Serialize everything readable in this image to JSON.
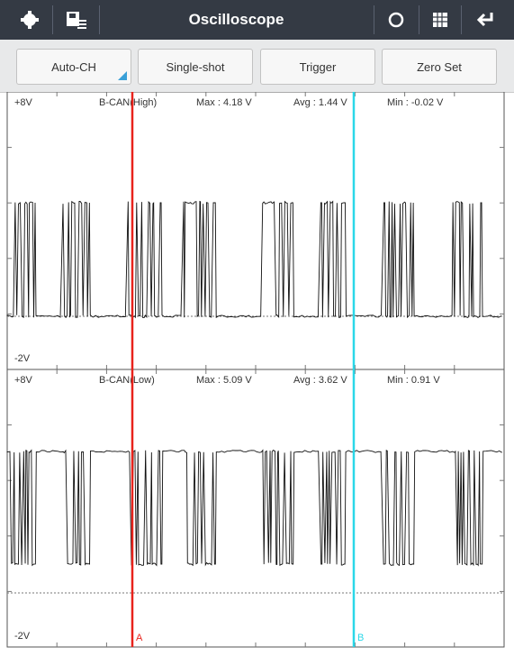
{
  "header": {
    "title": "Oscilloscope"
  },
  "toolbar": {
    "buttons": [
      "Auto-CH",
      "Single-shot",
      "Trigger",
      "Zero Set"
    ]
  },
  "channels": [
    {
      "top_label": "+8V",
      "name": "B-CAN(High)",
      "max": "Max : 4.18 V",
      "avg": "Avg : 1.44 V",
      "min": "Min : -0.02 V",
      "bottom_label": "-2V"
    },
    {
      "top_label": "+8V",
      "name": "B-CAN(Low)",
      "max": "Max : 5.09 V",
      "avg": "Avg : 3.62 V",
      "min": "Min : 0.91 V",
      "bottom_label": "-2V"
    }
  ],
  "cursors": [
    "A",
    "B"
  ]
}
